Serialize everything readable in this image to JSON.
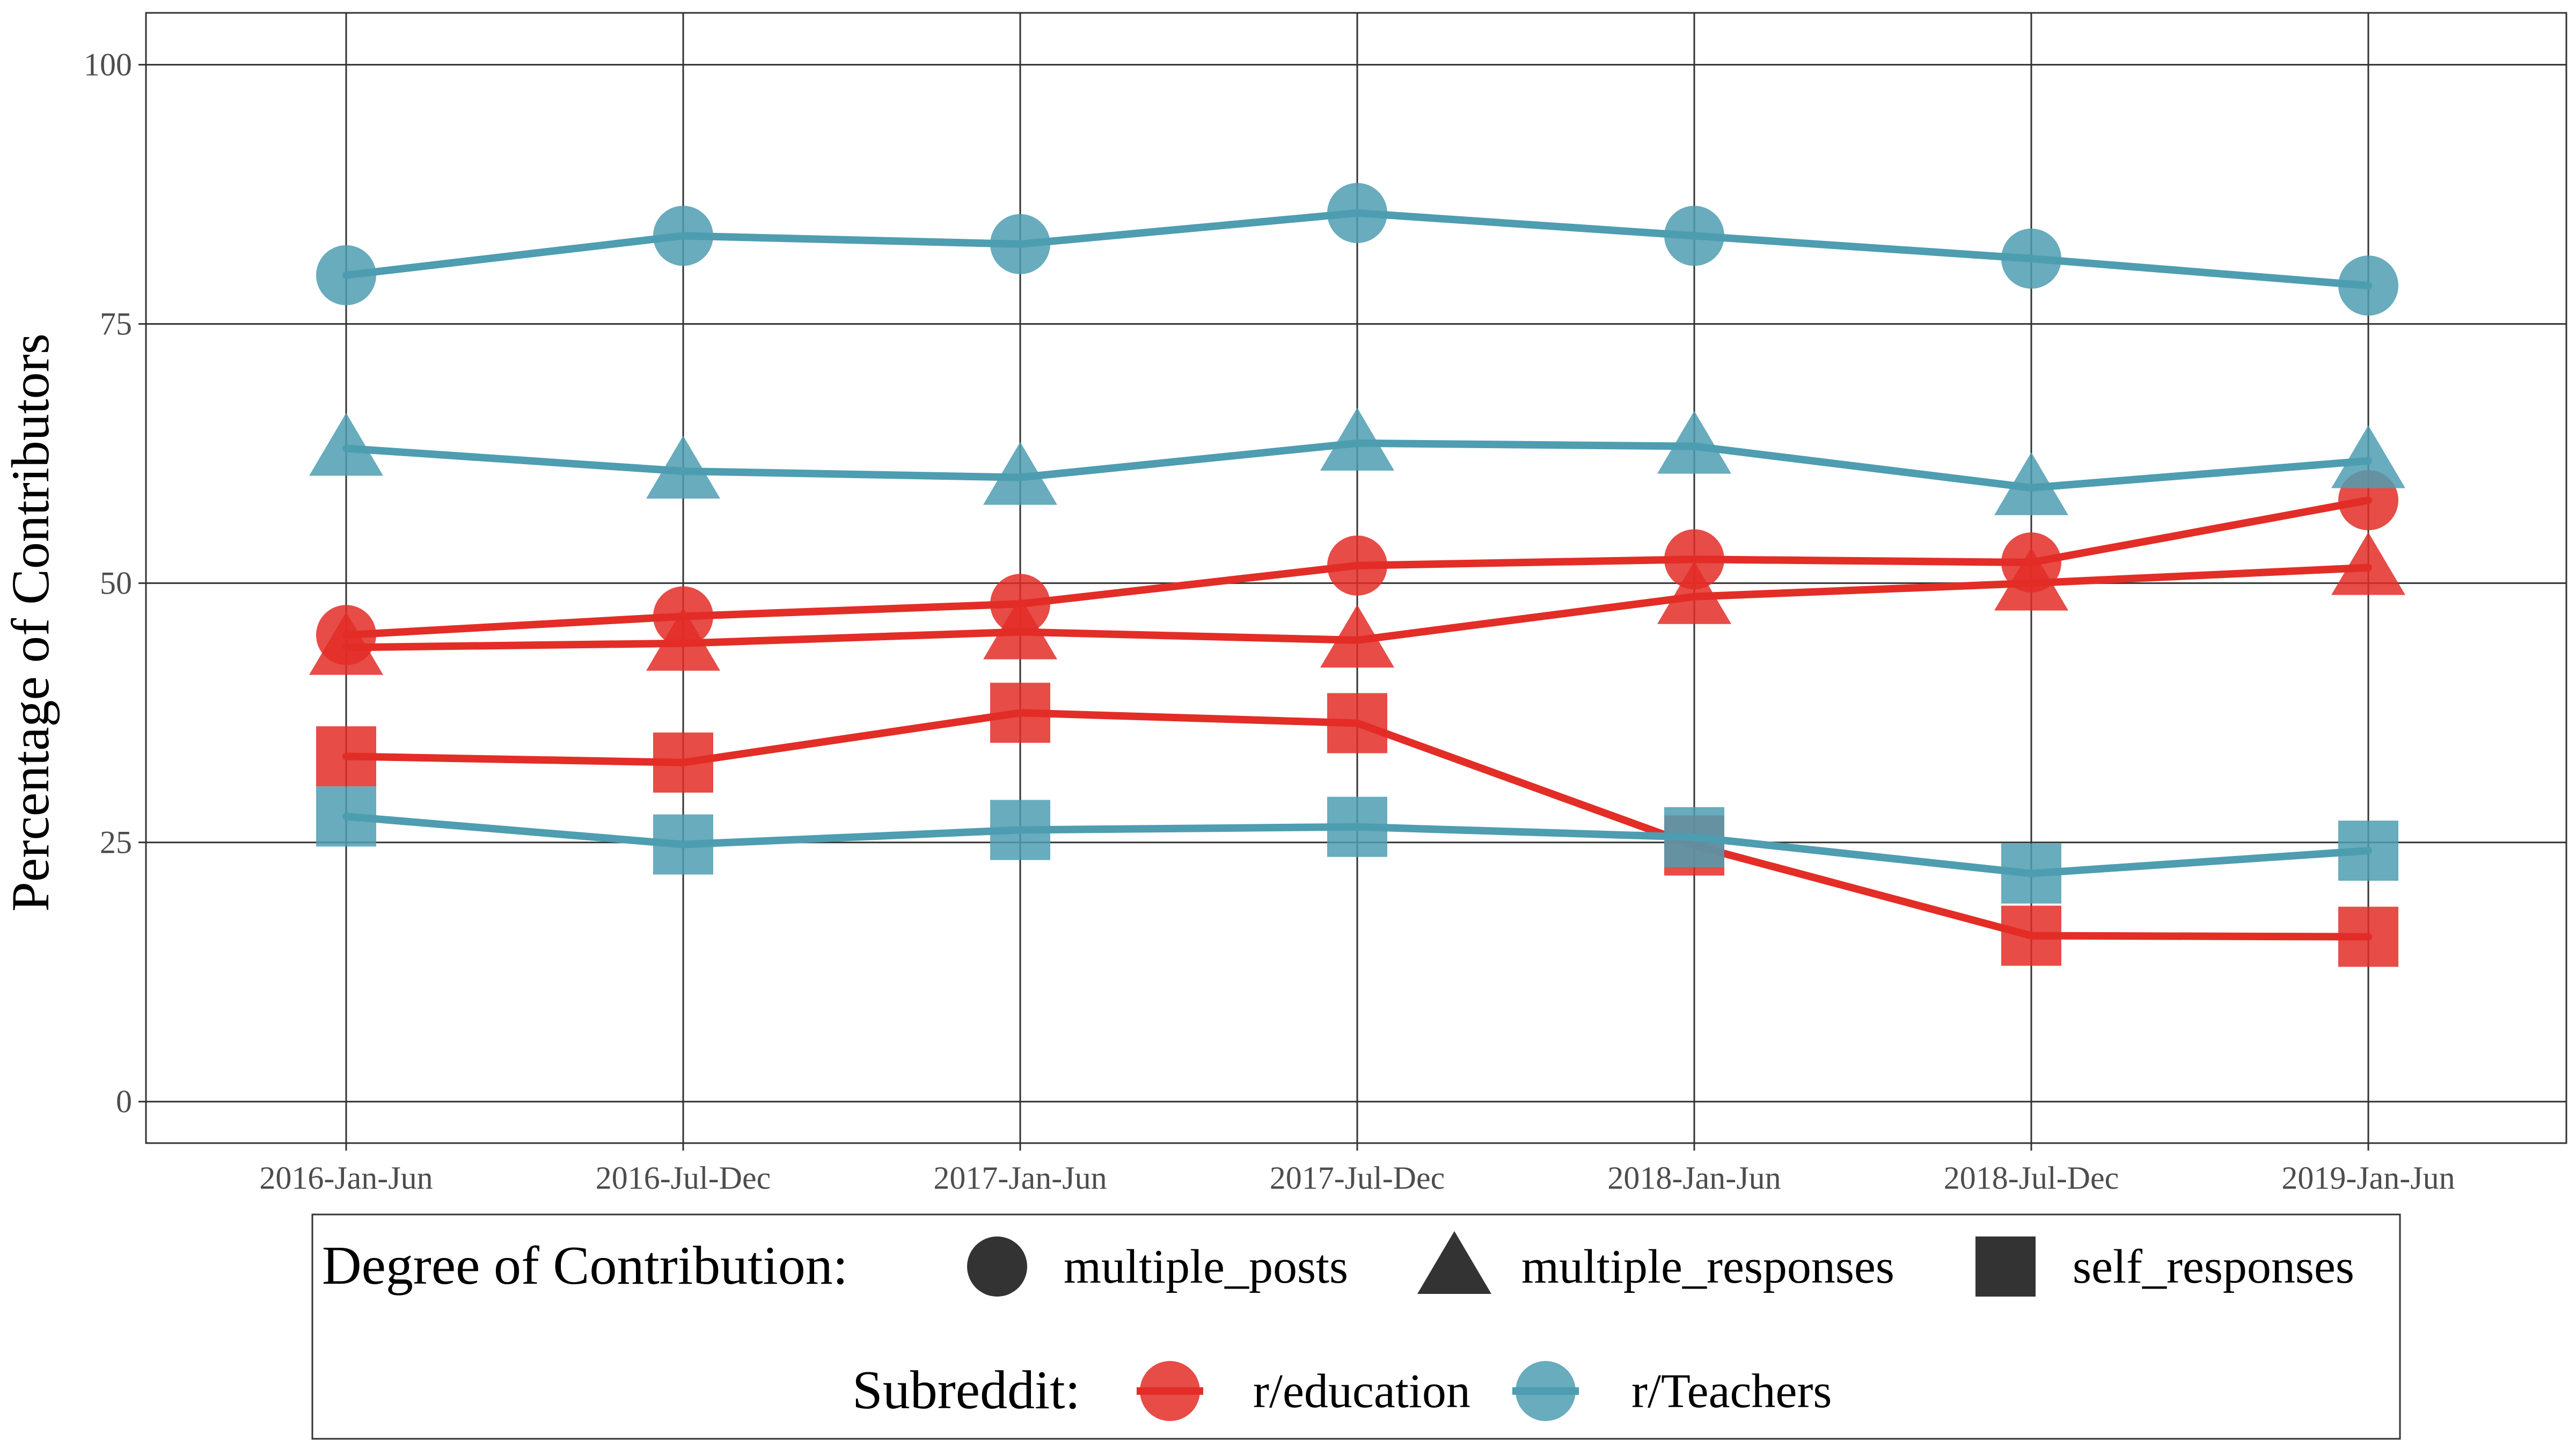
{
  "chart_data": {
    "type": "line",
    "title": "",
    "xlabel": "",
    "ylabel": "Percentage of Contributors",
    "categories": [
      "2016-Jan-Jun",
      "2016-Jul-Dec",
      "2017-Jan-Jun",
      "2017-Jul-Dec",
      "2018-Jan-Jun",
      "2018-Jul-Dec",
      "2019-Jan-Jun"
    ],
    "ylim": [
      -4,
      105
    ],
    "yticks": [
      0,
      25,
      50,
      75,
      100
    ],
    "grid": true,
    "legend_position": "bottom",
    "series": [
      {
        "subreddit": "r/education",
        "contribution": "multiple_posts",
        "color": "#e32d27",
        "shape": "circle",
        "values": [
          45.0,
          46.8,
          48.0,
          51.7,
          52.3,
          52.0,
          58.0
        ]
      },
      {
        "subreddit": "r/education",
        "contribution": "multiple_responses",
        "color": "#e32d27",
        "shape": "triangle",
        "values": [
          43.8,
          44.2,
          45.3,
          44.5,
          48.7,
          50.0,
          51.5
        ]
      },
      {
        "subreddit": "r/education",
        "contribution": "self_responses",
        "color": "#e32d27",
        "shape": "square",
        "values": [
          33.3,
          32.7,
          37.5,
          36.5,
          24.7,
          16.0,
          15.9
        ]
      },
      {
        "subreddit": "r/Teachers",
        "contribution": "multiple_posts",
        "color": "#4e9db1",
        "shape": "circle",
        "values": [
          79.7,
          83.5,
          82.7,
          85.7,
          83.5,
          81.3,
          78.7
        ]
      },
      {
        "subreddit": "r/Teachers",
        "contribution": "multiple_responses",
        "color": "#4e9db1",
        "shape": "triangle",
        "values": [
          63.0,
          60.8,
          60.2,
          63.5,
          63.2,
          59.2,
          61.8
        ]
      },
      {
        "subreddit": "r/Teachers",
        "contribution": "self_responses",
        "color": "#4e9db1",
        "shape": "square",
        "values": [
          27.5,
          24.8,
          26.2,
          26.5,
          25.5,
          22.0,
          24.2
        ]
      }
    ],
    "legend": {
      "shape_title": "Degree of Contribution:",
      "shapes": [
        {
          "shape": "circle",
          "label": "multiple_posts"
        },
        {
          "shape": "triangle",
          "label": "multiple_responses"
        },
        {
          "shape": "square",
          "label": "self_responses"
        }
      ],
      "color_title": "Subreddit:",
      "colors": [
        {
          "label": "r/education",
          "color": "#e32d27"
        },
        {
          "label": "r/Teachers",
          "color": "#4e9db1"
        }
      ]
    }
  }
}
